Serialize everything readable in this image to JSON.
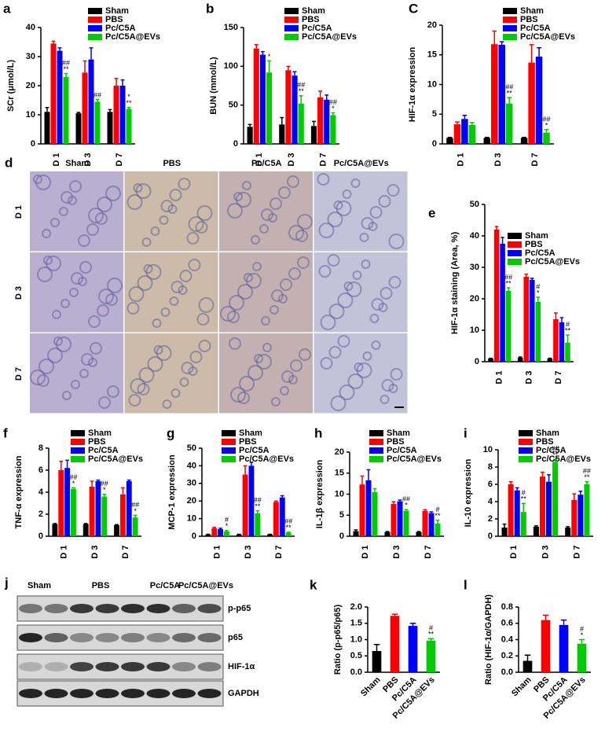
{
  "chart_data": [
    {
      "type": "bar",
      "panel": "a",
      "ylabel": "SCr (μmol/L)",
      "categories": [
        "D 1",
        "D 3",
        "D 7"
      ],
      "ylim": [
        0,
        40
      ],
      "yticks": [
        0,
        10,
        20,
        30,
        40
      ],
      "legend": "upper right",
      "series": [
        {
          "name": "Sham",
          "color": "#000000",
          "values": [
            11,
            10.5,
            11
          ],
          "errors": [
            1.5,
            0.3,
            0.8
          ]
        },
        {
          "name": "PBS",
          "color": "#ff0000",
          "values": [
            34.5,
            24.5,
            20
          ],
          "errors": [
            0.8,
            4,
            2.5
          ]
        },
        {
          "name": "Pc/C5A",
          "color": "#0000ff",
          "values": [
            32,
            29,
            20
          ],
          "errors": [
            1,
            4,
            2
          ]
        },
        {
          "name": "Pc/C5A@EVs",
          "color": "#00cc00",
          "values": [
            23,
            14.5,
            12
          ],
          "errors": [
            1.2,
            0.8,
            0.5
          ],
          "annotations": [
            [
              "##",
              "**"
            ],
            [
              "##"
            ],
            [
              "*",
              "**"
            ]
          ]
        }
      ]
    },
    {
      "type": "bar",
      "panel": "b",
      "ylabel": "BUN (mmol/L)",
      "categories": [
        "D 1",
        "D 3",
        "D 7"
      ],
      "ylim": [
        0,
        150
      ],
      "yticks": [
        0,
        50,
        100,
        150
      ],
      "legend": "upper right",
      "series": [
        {
          "name": "Sham",
          "color": "#000000",
          "values": [
            22,
            25,
            23
          ],
          "errors": [
            3,
            9,
            6
          ]
        },
        {
          "name": "PBS",
          "color": "#ff0000",
          "values": [
            123,
            95,
            60
          ],
          "errors": [
            5,
            5,
            8
          ]
        },
        {
          "name": "Pc/C5A",
          "color": "#0000ff",
          "values": [
            115,
            88,
            57
          ],
          "errors": [
            4,
            5,
            6
          ]
        },
        {
          "name": "Pc/C5A@EVs",
          "color": "#00cc00",
          "values": [
            92,
            52,
            37
          ],
          "errors": [
            15,
            10,
            3
          ],
          "annotations": [
            [
              "*"
            ],
            [
              "##",
              "**"
            ],
            [
              "##",
              "*"
            ]
          ]
        }
      ]
    },
    {
      "type": "bar",
      "panel": "C",
      "ylabel": "HIF-1α expression",
      "categories": [
        "D 1",
        "D 3",
        "D 7"
      ],
      "ylim": [
        0,
        20
      ],
      "yticks": [
        0,
        5,
        10,
        15,
        20
      ],
      "legend": "upper right",
      "series": [
        {
          "name": "Sham",
          "color": "#000000",
          "values": [
            1,
            1,
            1
          ],
          "errors": [
            0.1,
            0.1,
            0.1
          ]
        },
        {
          "name": "PBS",
          "color": "#ff0000",
          "values": [
            3.3,
            16.8,
            13.7
          ],
          "errors": [
            0.4,
            2.2,
            3
          ]
        },
        {
          "name": "Pc/C5A",
          "color": "#0000ff",
          "values": [
            4.2,
            16.7,
            14.7
          ],
          "errors": [
            0.6,
            0.5,
            1.5
          ]
        },
        {
          "name": "Pc/C5A@EVs",
          "color": "#00cc00",
          "values": [
            3.2,
            6.8,
            1.9
          ],
          "errors": [
            0.4,
            1,
            0.5
          ],
          "annotations": [
            null,
            [
              "##",
              "**"
            ],
            [
              "##",
              "*"
            ]
          ]
        }
      ]
    },
    {
      "type": "bar",
      "panel": "e",
      "ylabel": "HIF-1α staining (Area, %)",
      "categories": [
        "D 1",
        "D 3",
        "D 7"
      ],
      "ylim": [
        0,
        50
      ],
      "yticks": [
        0,
        10,
        20,
        30,
        40,
        50
      ],
      "legend": "upper right",
      "series": [
        {
          "name": "Sham",
          "color": "#000000",
          "values": [
            1,
            1.3,
            1
          ],
          "errors": [
            0.1,
            0.2,
            0.1
          ]
        },
        {
          "name": "PBS",
          "color": "#ff0000",
          "values": [
            42,
            27,
            13.5
          ],
          "errors": [
            1,
            0.8,
            2
          ]
        },
        {
          "name": "Pc/C5A",
          "color": "#0000ff",
          "values": [
            37.5,
            26,
            12.5
          ],
          "errors": [
            2,
            0.5,
            1.5
          ]
        },
        {
          "name": "Pc/C5A@EVs",
          "color": "#00cc00",
          "values": [
            22.5,
            19,
            6
          ],
          "errors": [
            1,
            1.5,
            2.5
          ],
          "annotations": [
            [
              "##",
              "**"
            ],
            [
              "#",
              "*"
            ],
            [
              "#",
              "**"
            ]
          ]
        }
      ]
    },
    {
      "type": "bar",
      "panel": "f",
      "ylabel": "TNF-α expression",
      "categories": [
        "D 1",
        "D 3",
        "D 7"
      ],
      "ylim": [
        0,
        8
      ],
      "yticks": [
        0,
        2,
        4,
        6,
        8
      ],
      "legend": "upper right",
      "series": [
        {
          "name": "Sham",
          "color": "#000000",
          "values": [
            1.1,
            1.1,
            1
          ],
          "errors": [
            0.05,
            0.05,
            0.05
          ]
        },
        {
          "name": "PBS",
          "color": "#ff0000",
          "values": [
            6,
            4.5,
            3.8
          ],
          "errors": [
            0.8,
            0.5,
            0.6
          ]
        },
        {
          "name": "Pc/C5A",
          "color": "#0000ff",
          "values": [
            6.2,
            5,
            5
          ],
          "errors": [
            0.7,
            0.1,
            0.1
          ]
        },
        {
          "name": "Pc/C5A@EVs",
          "color": "#00cc00",
          "values": [
            4.3,
            3.6,
            1.7
          ],
          "errors": [
            0.1,
            0.2,
            0.2
          ],
          "annotations": [
            [
              "##",
              "*"
            ],
            [
              "##",
              "*"
            ],
            [
              "##",
              "*"
            ]
          ]
        }
      ]
    },
    {
      "type": "bar",
      "panel": "g",
      "ylabel": "MCP-1 expression",
      "categories": [
        "D 1",
        "D 3",
        "D 7"
      ],
      "ylim": [
        0,
        50
      ],
      "yticks": [
        0,
        10,
        20,
        30,
        40,
        50
      ],
      "legend": "upper right",
      "series": [
        {
          "name": "Sham",
          "color": "#000000",
          "values": [
            1,
            1,
            1
          ],
          "errors": [
            0.1,
            0.1,
            0.1
          ]
        },
        {
          "name": "PBS",
          "color": "#ff0000",
          "values": [
            4.5,
            35,
            19.5
          ],
          "errors": [
            0.5,
            5,
            0.5
          ]
        },
        {
          "name": "Pc/C5A",
          "color": "#0000ff",
          "values": [
            4,
            40,
            22
          ],
          "errors": [
            0.5,
            2,
            1
          ]
        },
        {
          "name": "Pc/C5A@EVs",
          "color": "#00cc00",
          "values": [
            2.7,
            13,
            2
          ],
          "errors": [
            0.5,
            1.5,
            0.3
          ],
          "annotations": [
            [
              "#",
              "*"
            ],
            [
              "##",
              "**"
            ],
            [
              "##",
              "**"
            ]
          ]
        }
      ]
    },
    {
      "type": "bar",
      "panel": "h",
      "ylabel": "IL-1β expression",
      "categories": [
        "D 1",
        "D 3",
        "D 7"
      ],
      "ylim": [
        0,
        20
      ],
      "yticks": [
        0,
        5,
        10,
        15,
        20
      ],
      "legend": "upper right",
      "series": [
        {
          "name": "Sham",
          "color": "#000000",
          "values": [
            1.2,
            1,
            1
          ],
          "errors": [
            0.3,
            0.1,
            0.1
          ]
        },
        {
          "name": "PBS",
          "color": "#ff0000",
          "values": [
            12.3,
            7.7,
            6
          ],
          "errors": [
            2,
            0.5,
            0.3
          ]
        },
        {
          "name": "Pc/C5A",
          "color": "#0000ff",
          "values": [
            13.3,
            8.3,
            5.5
          ],
          "errors": [
            2.5,
            0.3,
            0.3
          ]
        },
        {
          "name": "Pc/C5A@EVs",
          "color": "#00cc00",
          "values": [
            10.5,
            6,
            3
          ],
          "errors": [
            0.8,
            0.3,
            0.8
          ],
          "annotations": [
            null,
            [
              "##",
              "*"
            ],
            [
              "#",
              "**"
            ]
          ]
        }
      ]
    },
    {
      "type": "bar",
      "panel": "i",
      "ylabel": "IL-10 expression",
      "categories": [
        "D 1",
        "D 3",
        "D 7"
      ],
      "ylim": [
        0,
        10
      ],
      "yticks": [
        0,
        2,
        4,
        6,
        8,
        10
      ],
      "legend": "upper right",
      "series": [
        {
          "name": "Sham",
          "color": "#000000",
          "values": [
            1,
            1.1,
            1
          ],
          "errors": [
            0.4,
            0.1,
            0.1
          ]
        },
        {
          "name": "PBS",
          "color": "#ff0000",
          "values": [
            6,
            6.9,
            4.2
          ],
          "errors": [
            0.3,
            0.5,
            0.7
          ]
        },
        {
          "name": "Pc/C5A",
          "color": "#0000ff",
          "values": [
            5.3,
            6.3,
            4.8
          ],
          "errors": [
            0.3,
            0.8,
            0.4
          ]
        },
        {
          "name": "Pc/C5A@EVs",
          "color": "#00cc00",
          "values": [
            2.8,
            8.6,
            6
          ],
          "errors": [
            1,
            0.3,
            0.3
          ],
          "annotations": [
            [
              "#",
              "**"
            ],
            [
              "##",
              "**"
            ],
            [
              "##",
              "**"
            ]
          ]
        }
      ]
    },
    {
      "type": "bar",
      "panel": "k",
      "ylabel": "Ratio (p-p65/p65)",
      "categories": [
        "Sham",
        "PBS",
        "Pc/C5A",
        "Pc/C5A@EVs"
      ],
      "values": [
        0.65,
        1.73,
        1.42,
        0.97
      ],
      "errors": [
        0.2,
        0.05,
        0.08,
        0.06
      ],
      "colors": [
        "#000000",
        "#ff0000",
        "#0000ff",
        "#00cc00"
      ],
      "annotations": [
        null,
        null,
        null,
        [
          "#",
          "**"
        ]
      ],
      "ylim": [
        0,
        2
      ],
      "yticks": [
        {
          "value": 0,
          "label": "0.0"
        },
        0.5,
        {
          "value": 1,
          "label": "1.0"
        },
        1.5,
        {
          "value": 2,
          "label": "2.0"
        }
      ]
    },
    {
      "type": "bar",
      "panel": "l",
      "ylabel": "Ratio (HIF-1α/GAPDH)",
      "categories": [
        "Sham",
        "PBS",
        "Pc/C5A",
        "Pc/C5A@EVs"
      ],
      "values": [
        0.14,
        0.64,
        0.58,
        0.35
      ],
      "errors": [
        0.07,
        0.06,
        0.06,
        0.05
      ],
      "colors": [
        "#000000",
        "#ff0000",
        "#0000ff",
        "#00cc00"
      ],
      "annotations": [
        null,
        null,
        null,
        [
          "#",
          "*"
        ]
      ],
      "ylim": [
        0,
        0.8
      ],
      "yticks": [
        {
          "value": 0,
          "label": "0.0"
        },
        0.2,
        0.4,
        0.6,
        0.8
      ]
    }
  ],
  "micrographs": {
    "panel": "d",
    "columns": [
      "Sham",
      "PBS",
      "Pc/C5A",
      "Pc/C5A@EVs"
    ],
    "rows": [
      "D 1",
      "D 3",
      "D 7"
    ]
  },
  "blot": {
    "panel": "j",
    "groups": [
      "Sham",
      "PBS",
      "Pc/C5A",
      "Pc/C5A@EVs"
    ],
    "bands": [
      "p-p65",
      "p65",
      "HIF-1α",
      "GAPDH"
    ]
  }
}
